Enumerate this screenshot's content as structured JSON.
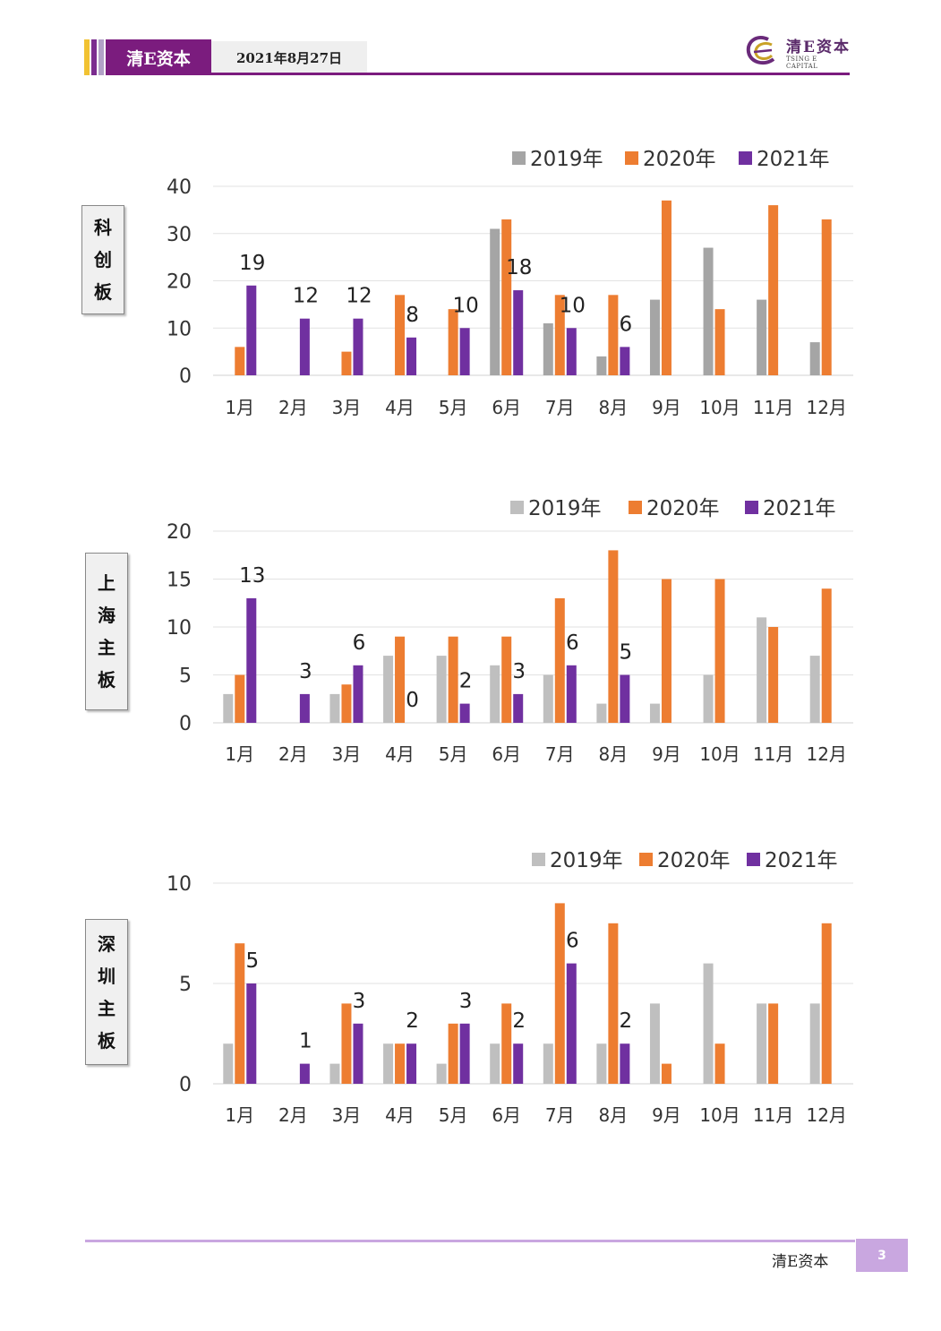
{
  "header": {
    "brand": "清E资本",
    "date": "2021年8月27日",
    "logo_cn": "清E资本",
    "logo_en": "TSING E CAPITAL"
  },
  "footer": {
    "brand": "清E资本",
    "page": "3"
  },
  "colors": {
    "brand_purple": "#7b1c7e",
    "s2019": "#a5a5a5",
    "s2019_light": "#bfbfbf",
    "s2020": "#ed7d31",
    "s2021": "#7030a0"
  },
  "chart_data": [
    {
      "type": "bar",
      "side_label": [
        "科",
        "创",
        "板"
      ],
      "categories": [
        "1月",
        "2月",
        "3月",
        "4月",
        "5月",
        "6月",
        "7月",
        "8月",
        "9月",
        "10月",
        "11月",
        "12月"
      ],
      "ylim": [
        0,
        40
      ],
      "yticks": [
        0,
        10,
        20,
        30,
        40
      ],
      "legend": "top-right",
      "grid": true,
      "series": [
        {
          "name": "2019年",
          "color": "#a5a5a5",
          "values": [
            null,
            null,
            null,
            null,
            null,
            31,
            11,
            4,
            16,
            27,
            16,
            7
          ]
        },
        {
          "name": "2020年",
          "color": "#ed7d31",
          "values": [
            6,
            null,
            5,
            17,
            14,
            33,
            17,
            17,
            37,
            14,
            36,
            33
          ]
        },
        {
          "name": "2021年",
          "color": "#7030a0",
          "values": [
            19,
            12,
            12,
            8,
            10,
            18,
            10,
            6,
            null,
            null,
            null,
            null
          ],
          "labels": true
        }
      ]
    },
    {
      "type": "bar",
      "side_label": [
        "上",
        "海",
        "主",
        "板"
      ],
      "categories": [
        "1月",
        "2月",
        "3月",
        "4月",
        "5月",
        "6月",
        "7月",
        "8月",
        "9月",
        "10月",
        "11月",
        "12月"
      ],
      "ylim": [
        0,
        20
      ],
      "yticks": [
        0,
        5,
        10,
        15,
        20
      ],
      "legend": "top-right",
      "grid": true,
      "series": [
        {
          "name": "2019年",
          "color": "#bfbfbf",
          "values": [
            3,
            null,
            3,
            7,
            7,
            6,
            5,
            2,
            2,
            5,
            11,
            7
          ]
        },
        {
          "name": "2020年",
          "color": "#ed7d31",
          "values": [
            5,
            null,
            4,
            9,
            9,
            9,
            13,
            18,
            15,
            15,
            10,
            14
          ]
        },
        {
          "name": "2021年",
          "color": "#7030a0",
          "values": [
            13,
            3,
            6,
            0,
            2,
            3,
            6,
            5,
            null,
            null,
            null,
            null
          ],
          "labels": true
        }
      ]
    },
    {
      "type": "bar",
      "side_label": [
        "深",
        "圳",
        "主",
        "板"
      ],
      "categories": [
        "1月",
        "2月",
        "3月",
        "4月",
        "5月",
        "6月",
        "7月",
        "8月",
        "9月",
        "10月",
        "11月",
        "12月"
      ],
      "ylim": [
        0,
        10
      ],
      "yticks": [
        0,
        5,
        10
      ],
      "legend": "top-right",
      "grid": true,
      "series": [
        {
          "name": "2019年",
          "color": "#bfbfbf",
          "values": [
            2,
            null,
            1,
            2,
            1,
            2,
            2,
            2,
            4,
            6,
            4,
            4
          ]
        },
        {
          "name": "2020年",
          "color": "#ed7d31",
          "values": [
            7,
            null,
            4,
            2,
            3,
            4,
            9,
            8,
            1,
            2,
            4,
            8
          ]
        },
        {
          "name": "2021年",
          "color": "#7030a0",
          "values": [
            5,
            1,
            3,
            2,
            3,
            2,
            6,
            2,
            null,
            null,
            null,
            null
          ],
          "labels": true
        }
      ]
    }
  ]
}
